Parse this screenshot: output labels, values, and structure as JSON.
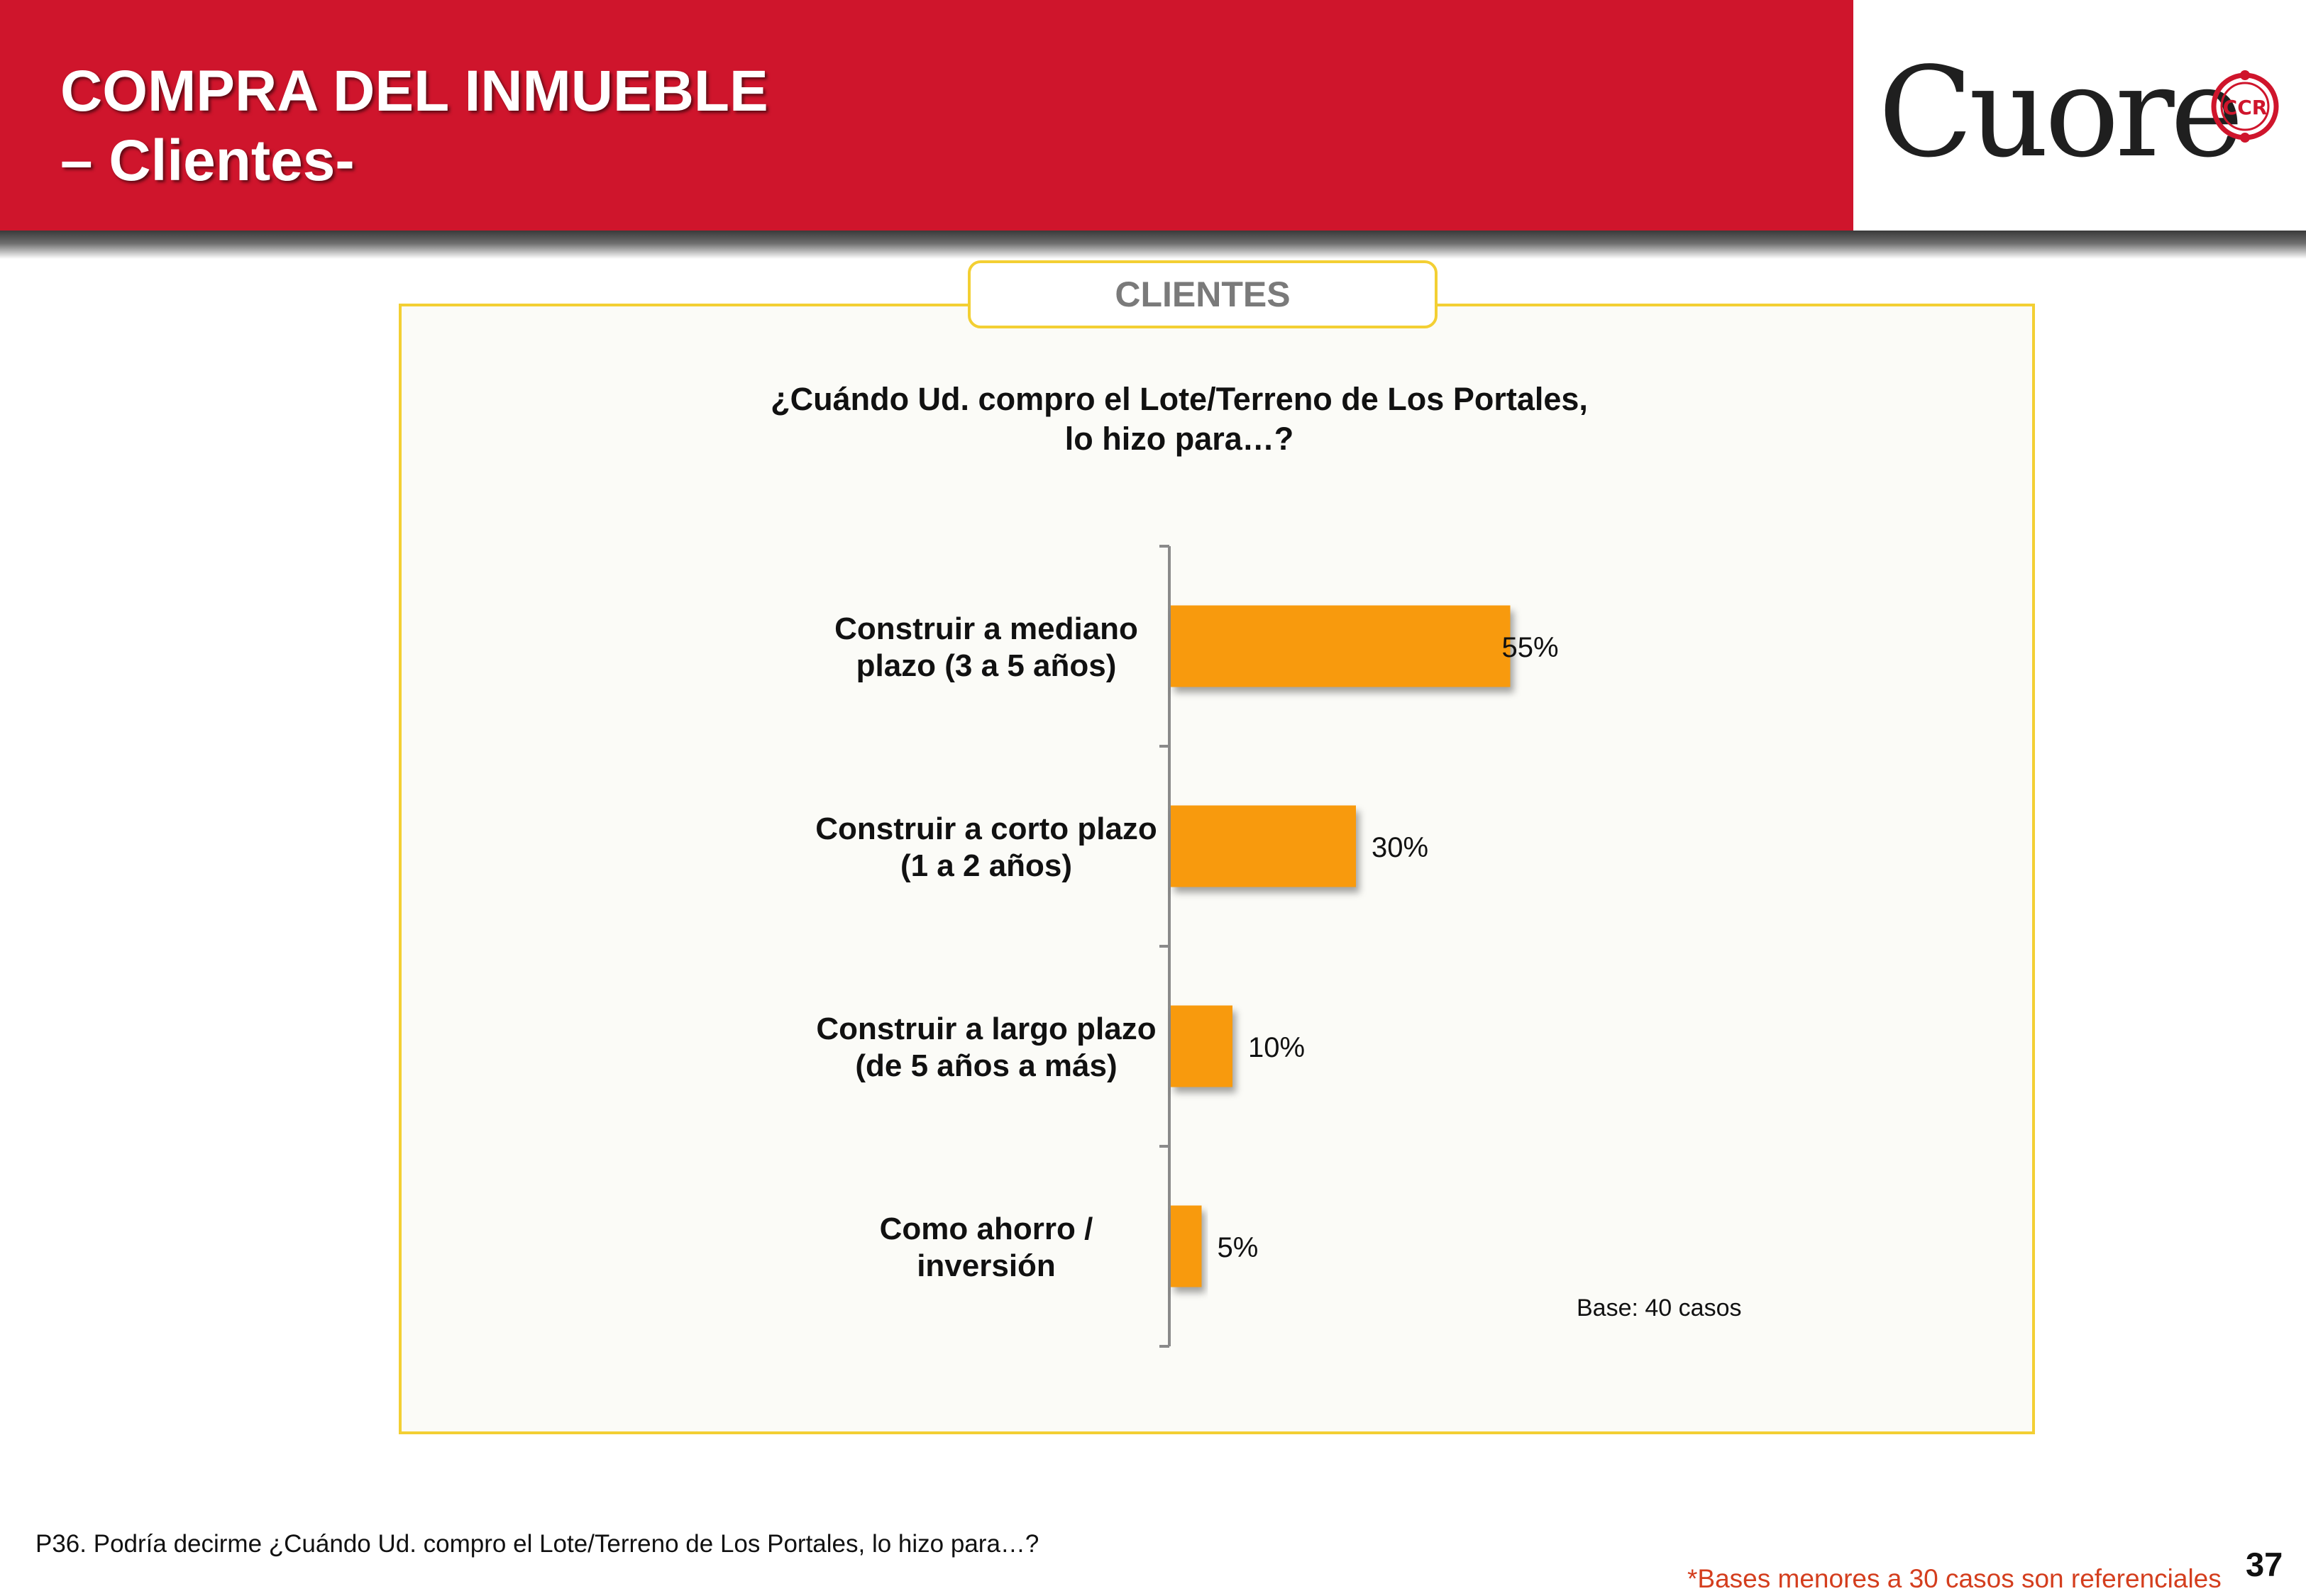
{
  "header": {
    "title_line1": "COMPRA DEL INMUEBLE",
    "title_line2": "– Clientes-",
    "logo_text": "Cuore",
    "logo_badge": "CCR"
  },
  "panel": {
    "tab_label": "CLIENTES",
    "question_line1": "¿Cuándo Ud. compro el Lote/Terreno de Los Portales,",
    "question_line2": "lo hizo para…?",
    "base_note": "Base: 40 casos"
  },
  "chart_data": {
    "type": "bar",
    "orientation": "horizontal",
    "categories": [
      [
        "Construir a mediano",
        "plazo (3 a 5 años)"
      ],
      [
        "Construir a corto plazo",
        "(1 a 2 años)"
      ],
      [
        "Construir a largo plazo",
        "(de 5 años a más)"
      ],
      [
        "Como ahorro /",
        "inversión"
      ]
    ],
    "values": [
      55,
      30,
      10,
      5
    ],
    "value_labels": [
      "55%",
      "30%",
      "10%",
      "5%"
    ],
    "unit": "%",
    "xlim": [
      0,
      100
    ],
    "grid": false,
    "legend": "none",
    "bar_color": "#f89a10"
  },
  "footer": {
    "question_note": "P36. Podría decirme ¿Cuándo Ud. compro el Lote/Terreno de Los Portales, lo hizo para…?",
    "disclaimer": "*Bases menores a 30 casos son referenciales",
    "page_number": "37"
  }
}
